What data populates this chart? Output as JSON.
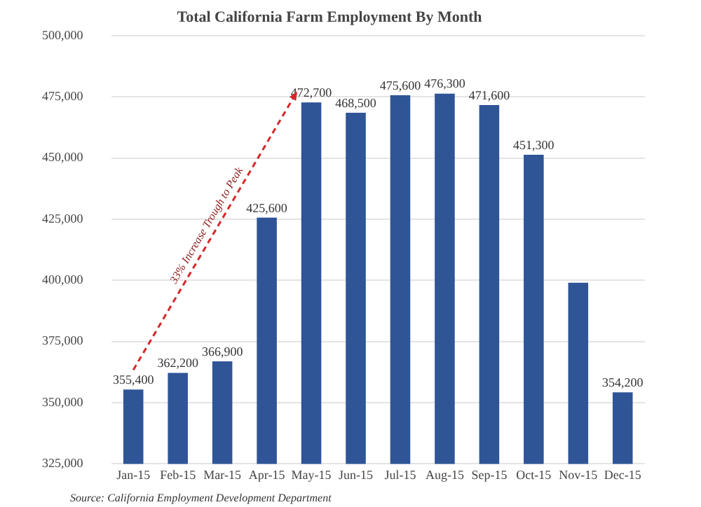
{
  "chart_data": {
    "type": "bar",
    "title": "Total California Farm Employment By Month",
    "categories": [
      "Jan-15",
      "Feb-15",
      "Mar-15",
      "Apr-15",
      "May-15",
      "Jun-15",
      "Jul-15",
      "Aug-15",
      "Sep-15",
      "Oct-15",
      "Nov-15",
      "Dec-15"
    ],
    "values": [
      355400,
      362200,
      366900,
      425600,
      472700,
      468500,
      475600,
      476300,
      471600,
      451300,
      399000,
      354200
    ],
    "value_labels": [
      "355,400",
      "362,200",
      "366,900",
      "425,600",
      "472,700",
      "468,500",
      "475,600",
      "476,300",
      "471,600",
      "451,300",
      null,
      "354,200"
    ],
    "color": "#2f5597",
    "ylim": [
      325000,
      500000
    ],
    "yticks": [
      {
        "value": 325000,
        "label": "325,000"
      },
      {
        "value": 350000,
        "label": "350,000"
      },
      {
        "value": 375000,
        "label": "375,000"
      },
      {
        "value": 400000,
        "label": "400,000"
      },
      {
        "value": 425000,
        "label": "425,000"
      },
      {
        "value": 450000,
        "label": "450,000"
      },
      {
        "value": 475000,
        "label": "475,000"
      },
      {
        "value": 500000,
        "label": "500,000"
      }
    ],
    "grid": "y",
    "legend": false,
    "annotations": [
      "33% Increase Trough to Peak",
      "Source: California Employment Development Department"
    ]
  }
}
